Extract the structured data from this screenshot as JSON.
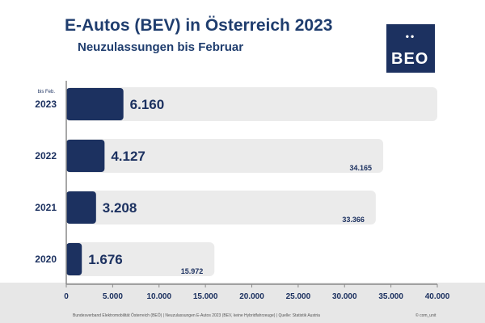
{
  "header": {
    "title": "E-Autos (BEV) in Österreich 2023",
    "subtitle": "Neuzulassungen bis Februar"
  },
  "logo": {
    "dots": "••",
    "text": "BEO"
  },
  "footer": {
    "source": "Bundesverband Elektromobilität Österreich (BEÖ) | Neuzulassungen E-Autos 2023 (BEV, keine Hybridfahrzeuge) | Quelle: Statistik Austria",
    "copyright": "© com_unit"
  },
  "colors": {
    "primary": "#1c3160",
    "track": "#ebebeb",
    "axis": "#8a8a8a"
  },
  "chart_data": {
    "type": "bar",
    "orientation": "horizontal",
    "categories": [
      "2023",
      "2022",
      "2021",
      "2020"
    ],
    "category_notes": [
      "bis Feb.",
      "",
      "",
      ""
    ],
    "series": [
      {
        "values": [
          6160,
          4127,
          3208,
          1676
        ],
        "labels": [
          "6.160",
          "4.127",
          "3.208",
          "1.676"
        ]
      },
      {
        "values": [
          40000,
          34165,
          33366,
          15972
        ],
        "labels": [
          "",
          "34.165",
          "33.366",
          "15.972"
        ]
      }
    ],
    "xlim": [
      0,
      40000
    ],
    "xticks": [
      0,
      5000,
      10000,
      15000,
      20000,
      25000,
      30000,
      35000,
      40000
    ],
    "xtick_labels": [
      "0",
      "5.000",
      "10.000",
      "15.000",
      "20.000",
      "25.000",
      "30.000",
      "35.000",
      "40.000"
    ],
    "grid": false,
    "legend": "none"
  }
}
